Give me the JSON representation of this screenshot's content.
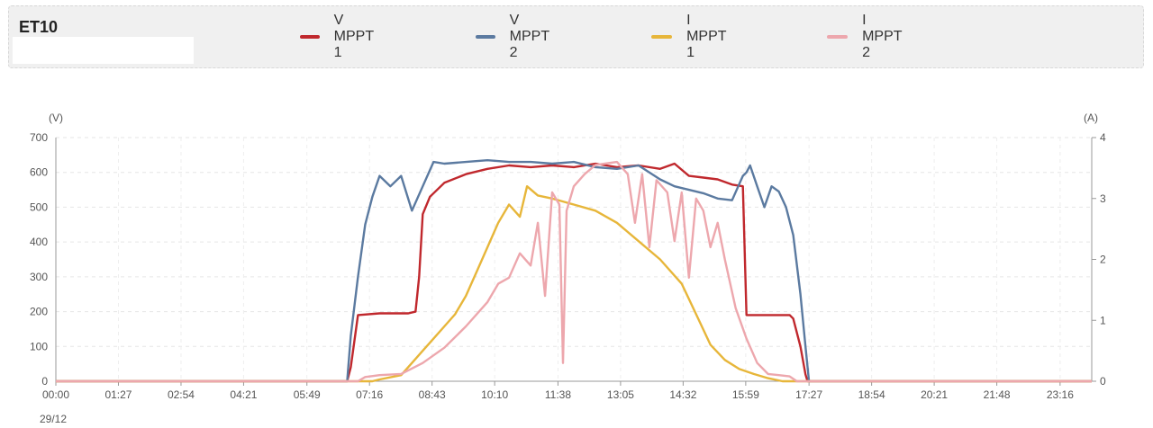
{
  "header": {
    "title": "ET10"
  },
  "chart_data": {
    "type": "line",
    "left_unit": "(V)",
    "right_unit": "(A)",
    "date_label": "29/12",
    "x_ticks": [
      "00:00",
      "01:27",
      "02:54",
      "04:21",
      "05:49",
      "07:16",
      "08:43",
      "10:10",
      "11:38",
      "13:05",
      "14:32",
      "15:59",
      "17:27",
      "18:54",
      "20:21",
      "21:48",
      "23:16"
    ],
    "y_left_ticks": [
      0,
      100,
      200,
      300,
      400,
      500,
      600,
      700
    ],
    "y_right_ticks": [
      0,
      1,
      2,
      3,
      4
    ],
    "y_left_lim": [
      0,
      700
    ],
    "y_right_lim": [
      0,
      4
    ],
    "grid": true,
    "legend_position": "top",
    "series": [
      {
        "name": "V MPPT 1",
        "axis": "left",
        "color": "#c0282d",
        "points": [
          [
            "00:00",
            0
          ],
          [
            "06:45",
            0
          ],
          [
            "06:50",
            40
          ],
          [
            "07:00",
            190
          ],
          [
            "07:30",
            195
          ],
          [
            "08:10",
            195
          ],
          [
            "08:20",
            200
          ],
          [
            "08:25",
            300
          ],
          [
            "08:30",
            480
          ],
          [
            "08:40",
            530
          ],
          [
            "09:00",
            570
          ],
          [
            "09:30",
            595
          ],
          [
            "10:00",
            610
          ],
          [
            "10:30",
            620
          ],
          [
            "11:00",
            615
          ],
          [
            "11:30",
            620
          ],
          [
            "12:00",
            615
          ],
          [
            "12:30",
            625
          ],
          [
            "13:00",
            615
          ],
          [
            "13:30",
            620
          ],
          [
            "14:00",
            610
          ],
          [
            "14:20",
            625
          ],
          [
            "14:40",
            590
          ],
          [
            "15:00",
            585
          ],
          [
            "15:20",
            580
          ],
          [
            "15:40",
            565
          ],
          [
            "15:55",
            560
          ],
          [
            "16:00",
            190
          ],
          [
            "16:30",
            190
          ],
          [
            "17:00",
            190
          ],
          [
            "17:05",
            180
          ],
          [
            "17:15",
            100
          ],
          [
            "17:22",
            20
          ],
          [
            "17:25",
            0
          ],
          [
            "24:00",
            0
          ]
        ]
      },
      {
        "name": "V MPPT 2",
        "axis": "left",
        "color": "#5b7aa0",
        "points": [
          [
            "00:00",
            0
          ],
          [
            "06:45",
            0
          ],
          [
            "06:50",
            130
          ],
          [
            "07:00",
            300
          ],
          [
            "07:10",
            450
          ],
          [
            "07:20",
            530
          ],
          [
            "07:30",
            590
          ],
          [
            "07:45",
            560
          ],
          [
            "08:00",
            590
          ],
          [
            "08:15",
            490
          ],
          [
            "08:30",
            560
          ],
          [
            "08:45",
            630
          ],
          [
            "09:00",
            625
          ],
          [
            "09:30",
            630
          ],
          [
            "10:00",
            635
          ],
          [
            "10:30",
            630
          ],
          [
            "11:00",
            630
          ],
          [
            "11:30",
            625
          ],
          [
            "12:00",
            630
          ],
          [
            "12:30",
            615
          ],
          [
            "13:00",
            610
          ],
          [
            "13:30",
            620
          ],
          [
            "14:00",
            580
          ],
          [
            "14:20",
            560
          ],
          [
            "14:40",
            550
          ],
          [
            "15:00",
            540
          ],
          [
            "15:20",
            525
          ],
          [
            "15:40",
            520
          ],
          [
            "15:55",
            590
          ],
          [
            "16:00",
            600
          ],
          [
            "16:05",
            620
          ],
          [
            "16:15",
            560
          ],
          [
            "16:25",
            500
          ],
          [
            "16:35",
            560
          ],
          [
            "16:45",
            545
          ],
          [
            "16:55",
            500
          ],
          [
            "17:05",
            420
          ],
          [
            "17:15",
            250
          ],
          [
            "17:22",
            100
          ],
          [
            "17:27",
            0
          ],
          [
            "24:00",
            0
          ]
        ]
      },
      {
        "name": "I MPPT 1",
        "axis": "right",
        "color": "#e7b63a",
        "points": [
          [
            "00:00",
            0
          ],
          [
            "07:20",
            0
          ],
          [
            "07:30",
            0.03
          ],
          [
            "08:00",
            0.1
          ],
          [
            "08:15",
            0.3
          ],
          [
            "08:30",
            0.5
          ],
          [
            "08:45",
            0.7
          ],
          [
            "09:00",
            0.9
          ],
          [
            "09:15",
            1.1
          ],
          [
            "09:30",
            1.4
          ],
          [
            "09:45",
            1.8
          ],
          [
            "10:00",
            2.2
          ],
          [
            "10:15",
            2.6
          ],
          [
            "10:30",
            2.9
          ],
          [
            "10:45",
            2.7
          ],
          [
            "10:55",
            3.2
          ],
          [
            "11:10",
            3.05
          ],
          [
            "11:30",
            3.0
          ],
          [
            "11:45",
            2.95
          ],
          [
            "12:00",
            2.9
          ],
          [
            "12:30",
            2.8
          ],
          [
            "13:00",
            2.6
          ],
          [
            "13:30",
            2.3
          ],
          [
            "14:00",
            2.0
          ],
          [
            "14:30",
            1.6
          ],
          [
            "14:50",
            1.1
          ],
          [
            "15:10",
            0.6
          ],
          [
            "15:30",
            0.35
          ],
          [
            "15:50",
            0.2
          ],
          [
            "16:10",
            0.12
          ],
          [
            "16:30",
            0.05
          ],
          [
            "16:50",
            0.0
          ],
          [
            "24:00",
            0
          ]
        ]
      },
      {
        "name": "I MPPT 2",
        "axis": "right",
        "color": "#eda7ad",
        "points": [
          [
            "00:00",
            0
          ],
          [
            "07:00",
            0
          ],
          [
            "07:10",
            0.07
          ],
          [
            "07:30",
            0.1
          ],
          [
            "08:00",
            0.12
          ],
          [
            "08:30",
            0.3
          ],
          [
            "09:00",
            0.55
          ],
          [
            "09:30",
            0.9
          ],
          [
            "10:00",
            1.3
          ],
          [
            "10:15",
            1.6
          ],
          [
            "10:30",
            1.7
          ],
          [
            "10:45",
            2.1
          ],
          [
            "11:00",
            1.9
          ],
          [
            "11:10",
            2.6
          ],
          [
            "11:20",
            1.4
          ],
          [
            "11:30",
            3.1
          ],
          [
            "11:40",
            2.9
          ],
          [
            "11:45",
            0.3
          ],
          [
            "11:50",
            2.8
          ],
          [
            "12:00",
            3.2
          ],
          [
            "12:15",
            3.4
          ],
          [
            "12:30",
            3.55
          ],
          [
            "13:00",
            3.6
          ],
          [
            "13:15",
            3.4
          ],
          [
            "13:25",
            2.6
          ],
          [
            "13:35",
            3.4
          ],
          [
            "13:45",
            2.2
          ],
          [
            "13:55",
            3.3
          ],
          [
            "14:10",
            3.1
          ],
          [
            "14:20",
            2.3
          ],
          [
            "14:30",
            3.1
          ],
          [
            "14:40",
            1.7
          ],
          [
            "14:50",
            3.0
          ],
          [
            "15:00",
            2.8
          ],
          [
            "15:10",
            2.2
          ],
          [
            "15:20",
            2.6
          ],
          [
            "15:30",
            2.0
          ],
          [
            "15:45",
            1.2
          ],
          [
            "16:00",
            0.7
          ],
          [
            "16:15",
            0.3
          ],
          [
            "16:30",
            0.12
          ],
          [
            "16:45",
            0.1
          ],
          [
            "17:00",
            0.08
          ],
          [
            "17:10",
            0
          ],
          [
            "24:00",
            0
          ]
        ]
      }
    ]
  }
}
